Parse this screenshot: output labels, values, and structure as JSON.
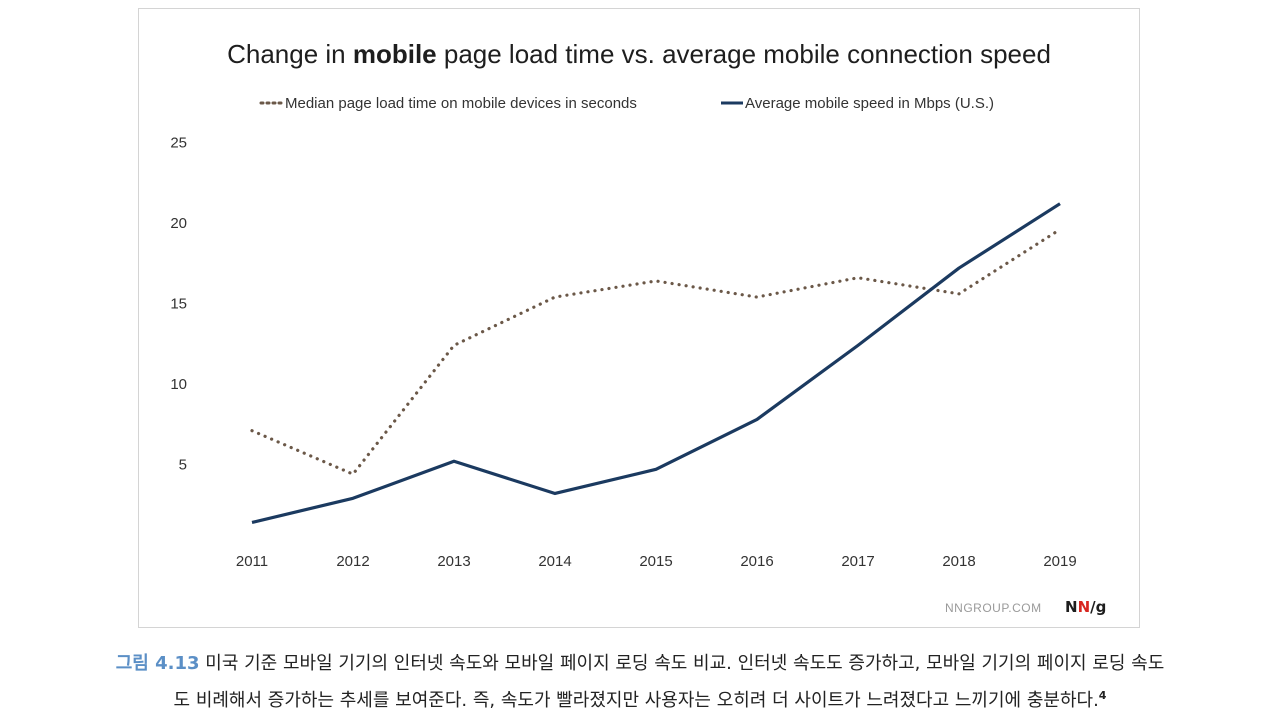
{
  "chart_data": {
    "type": "line",
    "title_parts": [
      "Change in ",
      "mobile",
      " page load time vs. average mobile connection speed"
    ],
    "xlabel": "",
    "ylabel": "",
    "x": [
      "2011",
      "2012",
      "2013",
      "2014",
      "2015",
      "2016",
      "2017",
      "2018",
      "2019"
    ],
    "ylim": [
      0,
      25
    ],
    "yticks": [
      5,
      10,
      15,
      20,
      25
    ],
    "grid": false,
    "legend_position": "top",
    "series": [
      {
        "name": "Median page load time on mobile devices in seconds",
        "style": "dotted",
        "color": "#6b5848",
        "values": [
          7.1,
          4.4,
          12.4,
          15.4,
          16.4,
          15.4,
          16.6,
          15.6,
          19.6
        ]
      },
      {
        "name": "Average mobile speed in Mbps (U.S.)",
        "style": "solid",
        "color": "#1b3a60",
        "values": [
          1.4,
          2.9,
          5.2,
          3.2,
          4.7,
          7.8,
          12.4,
          17.2,
          21.2
        ]
      }
    ]
  },
  "source": "NNGROUP.COM",
  "logo": {
    "n1": "N",
    "n2": "N",
    "g": "/g"
  },
  "caption": {
    "figure_label": "그림 4.13",
    "line1": " 미국 기준 모바일 기기의 인터넷 속도와 모바일 페이지 로딩 속도 비교. 인터넷 속도도 증가하고, 모바일 기기의 페이지 로딩 속도",
    "line2": "도 비례해서 증가하는 추세를 보여준다. 즉, 속도가 빨라졌지만 사용자는 오히려 더 사이트가 느려졌다고 느끼기에 충분하다.",
    "footnote": "4"
  }
}
